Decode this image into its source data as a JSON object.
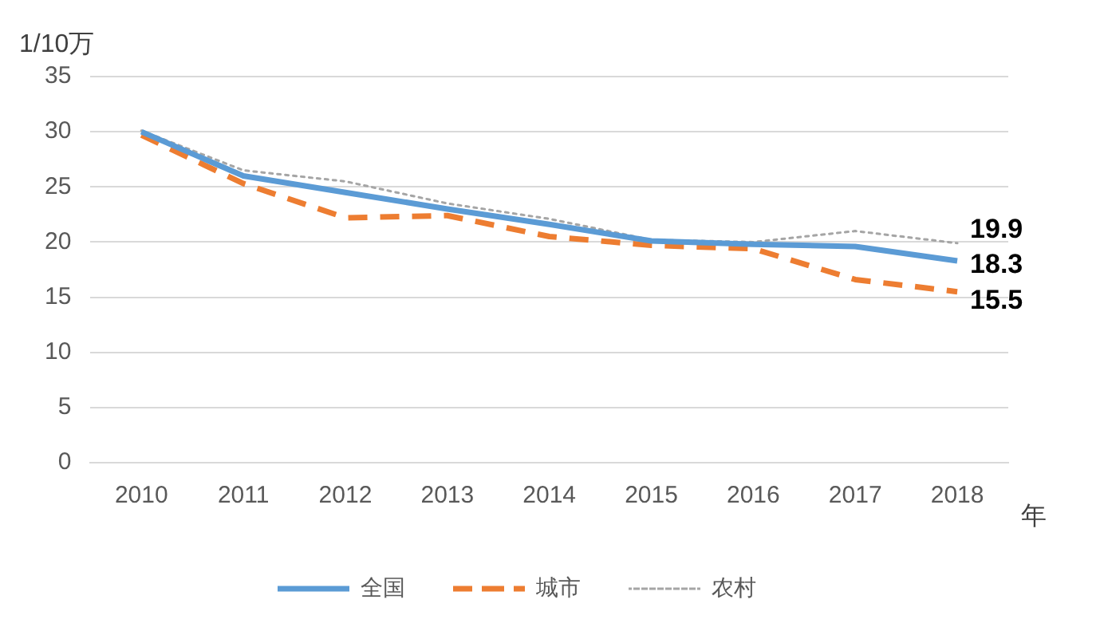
{
  "chart_data": {
    "type": "line",
    "ylabel": "1/10万",
    "xlabel": "年",
    "categories": [
      "2010",
      "2011",
      "2012",
      "2013",
      "2014",
      "2015",
      "2016",
      "2017",
      "2018"
    ],
    "series": [
      {
        "name": "全国",
        "color": "#5b9bd5",
        "line_style": "solid",
        "values": [
          30.0,
          26.0,
          24.5,
          23.0,
          21.6,
          20.1,
          19.8,
          19.6,
          18.3
        ],
        "value_labels": [
          null,
          null,
          null,
          null,
          null,
          null,
          null,
          null,
          "18.3"
        ]
      },
      {
        "name": "城市",
        "color": "#ed7d31",
        "line_style": "dashed",
        "values": [
          29.7,
          25.3,
          22.2,
          22.4,
          20.5,
          19.7,
          19.4,
          16.6,
          15.5
        ],
        "value_labels": [
          null,
          null,
          null,
          null,
          null,
          null,
          null,
          null,
          "15.5"
        ]
      },
      {
        "name": "农村",
        "color": "#a5a5a5",
        "line_style": "dotted",
        "values": [
          30.1,
          26.5,
          25.5,
          23.5,
          22.1,
          20.2,
          20.0,
          21.0,
          19.9
        ],
        "value_labels": [
          null,
          null,
          null,
          null,
          null,
          null,
          null,
          null,
          "19.9"
        ]
      }
    ],
    "ylim": [
      0,
      35
    ],
    "yticks": [
      0,
      5,
      10,
      15,
      20,
      25,
      30,
      35
    ],
    "grid": "y",
    "legend": "bottom",
    "marker": "none"
  }
}
